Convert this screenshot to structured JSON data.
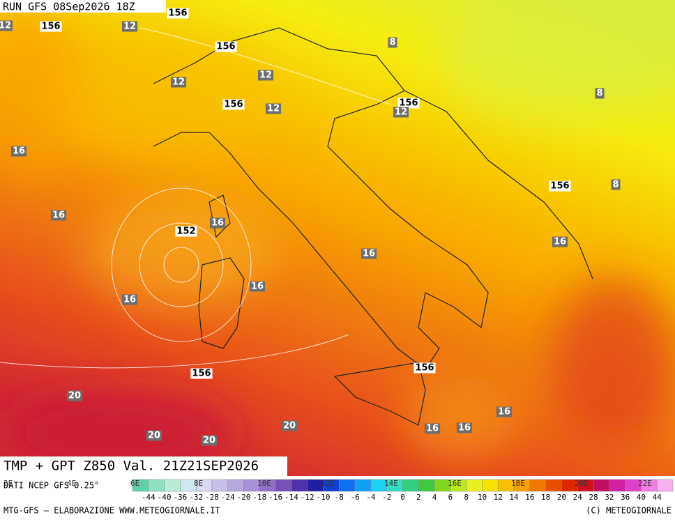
{
  "header": {
    "run": "RUN GFS 08Sep2026 18Z"
  },
  "map": {
    "labels": [
      156,
      12,
      156,
      12,
      8,
      156,
      12,
      12,
      8,
      156,
      156,
      12,
      12,
      16,
      156,
      8,
      16,
      16,
      152,
      16,
      16,
      16,
      16,
      156,
      156,
      20,
      16,
      20,
      16,
      16,
      20,
      20
    ]
  },
  "footer": {
    "title": "TMP + GPT Z850 Val. 21Z21SEP2026",
    "source": "DATI NCEP GFS 0.25°",
    "credit_left": "MTG-GFS – ELABORAZIONE WWW.METEOGIORNALE.IT",
    "credit_right": "(C) METEOGIORNALE",
    "longitudes": [
      "2E",
      "4E",
      "6E",
      "8E",
      "10E",
      "12E",
      "14E",
      "16E",
      "18E",
      "20E",
      "22E"
    ],
    "colorbar": {
      "labels": [
        -44,
        -40,
        -36,
        -32,
        -28,
        -24,
        -20,
        -18,
        -16,
        -14,
        -12,
        -10,
        -8,
        -6,
        -4,
        -2,
        0,
        2,
        4,
        6,
        8,
        10,
        12,
        14,
        16,
        18,
        20,
        24,
        28,
        32,
        36,
        40,
        44
      ],
      "colors": [
        "#5fd0a8",
        "#8fe0c0",
        "#b8eed8",
        "#d0e8f0",
        "#d8d8f0",
        "#c8c0e8",
        "#b8a8e0",
        "#a890d8",
        "#9070c8",
        "#7850b8",
        "#5030a8",
        "#2020a0",
        "#1040d0",
        "#1070f0",
        "#10a0f8",
        "#20d0f0",
        "#30e0c0",
        "#30d080",
        "#40c840",
        "#80d820",
        "#b8e820",
        "#e8f020",
        "#f8e000",
        "#f8c000",
        "#f8a000",
        "#f07800",
        "#e85000",
        "#e02800",
        "#d01020",
        "#c01060",
        "#d020a0",
        "#e040c8",
        "#f080e0",
        "#f8b0f0"
      ]
    }
  }
}
